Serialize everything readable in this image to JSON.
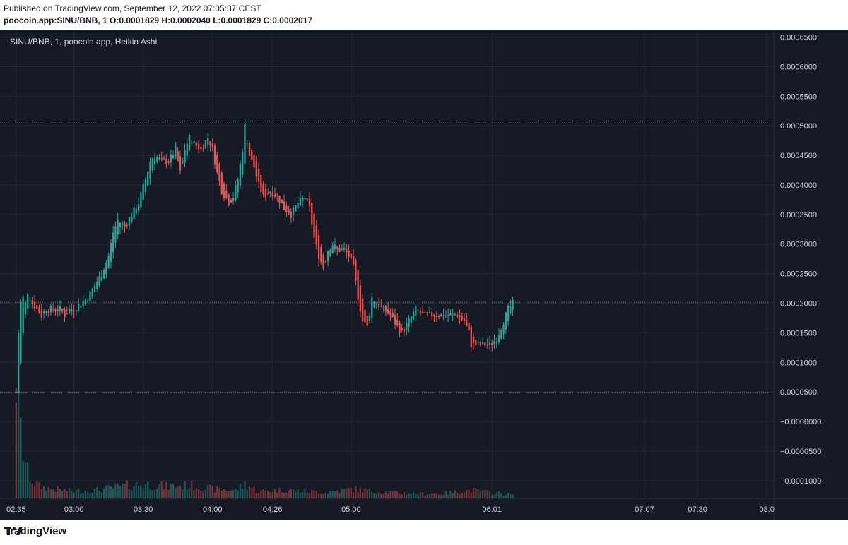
{
  "header": {
    "published": "Published on TradingView.com, September 12, 2022 07:05:37 CEST",
    "symbol": "poocoin.app:SINU/BNB, 1",
    "o_label": "O:",
    "o_value": "0.0001829",
    "h_label": "H:",
    "h_value": "0.0002040",
    "l_label": "L:",
    "l_value": "0.0001829",
    "c_label": "C:",
    "c_value": "0.0002017"
  },
  "legend": "SINU/BNB, 1, poocoin.app, Heikin Ashi",
  "footer": {
    "brand": "TradingView",
    "logo_icon": "tradingview-logo-icon"
  },
  "colors": {
    "up": "#26a69a",
    "down": "#ef5350",
    "background": "#161a25",
    "grid": "#242832",
    "text": "#d1d4dc"
  },
  "chart_data": {
    "type": "candlestick",
    "style": "Heikin Ashi",
    "interval": "1",
    "ylim": [
      -0.00013,
      0.0006625
    ],
    "y_ticks": [
      "0.0006500",
      "0.0006000",
      "0.0005500",
      "0.0005000",
      "0.0004500",
      "0.0004000",
      "0.0003500",
      "0.0003000",
      "0.0002500",
      "0.0002000",
      "0.0001500",
      "0.0001000",
      "0.0000500",
      "−0.0000000",
      "−0.0000500",
      "−0.0001000"
    ],
    "y_tick_values": [
      0.00065,
      0.0006,
      0.00055,
      0.0005,
      0.00045,
      0.0004,
      0.00035,
      0.0003,
      0.00025,
      0.0002,
      0.00015,
      0.0001,
      5e-05,
      0,
      -5e-05,
      -0.0001
    ],
    "x_ticks": [
      "02:35",
      "03:00",
      "03:30",
      "04:00",
      "04:26",
      "05:00",
      "06:01",
      "07:07",
      "07:30",
      "08:0"
    ],
    "x_tick_minutes": [
      155,
      180,
      210,
      240,
      266,
      300,
      361,
      427,
      450,
      480
    ],
    "x_range": [
      148,
      483
    ],
    "reference_lines": [
      0.000508,
      0.0002017,
      4.95e-05
    ],
    "price_path": [
      [
        155,
        5e-05
      ],
      [
        156,
        0.00015
      ],
      [
        157,
        0.0002
      ],
      [
        158,
        0.00021
      ],
      [
        159,
        0.0002
      ],
      [
        160,
        0.00022
      ],
      [
        162,
        0.0002
      ],
      [
        164,
        0.00019
      ],
      [
        166,
        0.00018
      ],
      [
        168,
        0.00019
      ],
      [
        170,
        0.00019
      ],
      [
        172,
        0.00019
      ],
      [
        174,
        0.00019
      ],
      [
        176,
        0.00018
      ],
      [
        178,
        0.00019
      ],
      [
        180,
        0.00019
      ],
      [
        183,
        0.0002
      ],
      [
        186,
        0.00021
      ],
      [
        189,
        0.00023
      ],
      [
        192,
        0.00025
      ],
      [
        195,
        0.00028
      ],
      [
        197,
        0.00032
      ],
      [
        199,
        0.00034
      ],
      [
        202,
        0.00033
      ],
      [
        205,
        0.00035
      ],
      [
        208,
        0.00037
      ],
      [
        211,
        0.00041
      ],
      [
        213,
        0.00044
      ],
      [
        215,
        0.00045
      ],
      [
        218,
        0.00044
      ],
      [
        221,
        0.00044
      ],
      [
        224,
        0.00046
      ],
      [
        226,
        0.00042
      ],
      [
        228,
        0.00046
      ],
      [
        230,
        0.00048
      ],
      [
        232,
        0.00047
      ],
      [
        235,
        0.00046
      ],
      [
        238,
        0.00048
      ],
      [
        240,
        0.00046
      ],
      [
        242,
        0.00042
      ],
      [
        244,
        0.00039
      ],
      [
        247,
        0.00037
      ],
      [
        249,
        0.00038
      ],
      [
        251,
        0.00041
      ],
      [
        253,
        0.00046
      ],
      [
        254,
        0.0005
      ],
      [
        256,
        0.00045
      ],
      [
        258,
        0.00043
      ],
      [
        260,
        0.0004
      ],
      [
        262,
        0.00038
      ],
      [
        265,
        0.00039
      ],
      [
        268,
        0.00038
      ],
      [
        271,
        0.00036
      ],
      [
        274,
        0.00035
      ],
      [
        277,
        0.00037
      ],
      [
        280,
        0.00038
      ],
      [
        282,
        0.00036
      ],
      [
        284,
        0.00031
      ],
      [
        286,
        0.00028
      ],
      [
        288,
        0.00026
      ],
      [
        290,
        0.00029
      ],
      [
        292,
        0.0003
      ],
      [
        294,
        0.00029
      ],
      [
        297,
        0.00029
      ],
      [
        299,
        0.00028
      ],
      [
        301,
        0.00026
      ],
      [
        303,
        0.00021
      ],
      [
        305,
        0.00017
      ],
      [
        307,
        0.00016
      ],
      [
        309,
        0.00021
      ],
      [
        311,
        0.0002
      ],
      [
        314,
        0.00019
      ],
      [
        317,
        0.00018
      ],
      [
        320,
        0.00016
      ],
      [
        322,
        0.00015
      ],
      [
        325,
        0.00017
      ],
      [
        328,
        0.00019
      ],
      [
        331,
        0.00018
      ],
      [
        334,
        0.00018
      ],
      [
        337,
        0.00018
      ],
      [
        340,
        0.00018
      ],
      [
        343,
        0.00018
      ],
      [
        346,
        0.00018
      ],
      [
        349,
        0.00017
      ],
      [
        351,
        0.00015
      ],
      [
        352,
        0.00013
      ],
      [
        354,
        0.00013
      ],
      [
        357,
        0.00013
      ],
      [
        360,
        0.00013
      ],
      [
        363,
        0.00014
      ],
      [
        366,
        0.00017
      ],
      [
        368,
        0.00019
      ],
      [
        370,
        0.0002
      ]
    ],
    "volume_profile": [
      [
        155,
        1.0
      ],
      [
        156,
        0.85
      ],
      [
        157,
        0.55
      ],
      [
        158,
        0.4
      ],
      [
        159,
        0.3
      ],
      [
        160,
        0.22
      ],
      [
        162,
        0.15
      ],
      [
        165,
        0.1
      ],
      [
        170,
        0.08
      ],
      [
        180,
        0.06
      ],
      [
        190,
        0.07
      ],
      [
        200,
        0.1
      ],
      [
        210,
        0.12
      ],
      [
        220,
        0.1
      ],
      [
        230,
        0.11
      ],
      [
        240,
        0.08
      ],
      [
        250,
        0.07
      ],
      [
        254,
        0.12
      ],
      [
        260,
        0.06
      ],
      [
        270,
        0.07
      ],
      [
        280,
        0.06
      ],
      [
        290,
        0.05
      ],
      [
        300,
        0.08
      ],
      [
        305,
        0.07
      ],
      [
        315,
        0.05
      ],
      [
        330,
        0.04
      ],
      [
        340,
        0.04
      ],
      [
        352,
        0.07
      ],
      [
        360,
        0.05
      ],
      [
        370,
        0.03
      ]
    ]
  }
}
